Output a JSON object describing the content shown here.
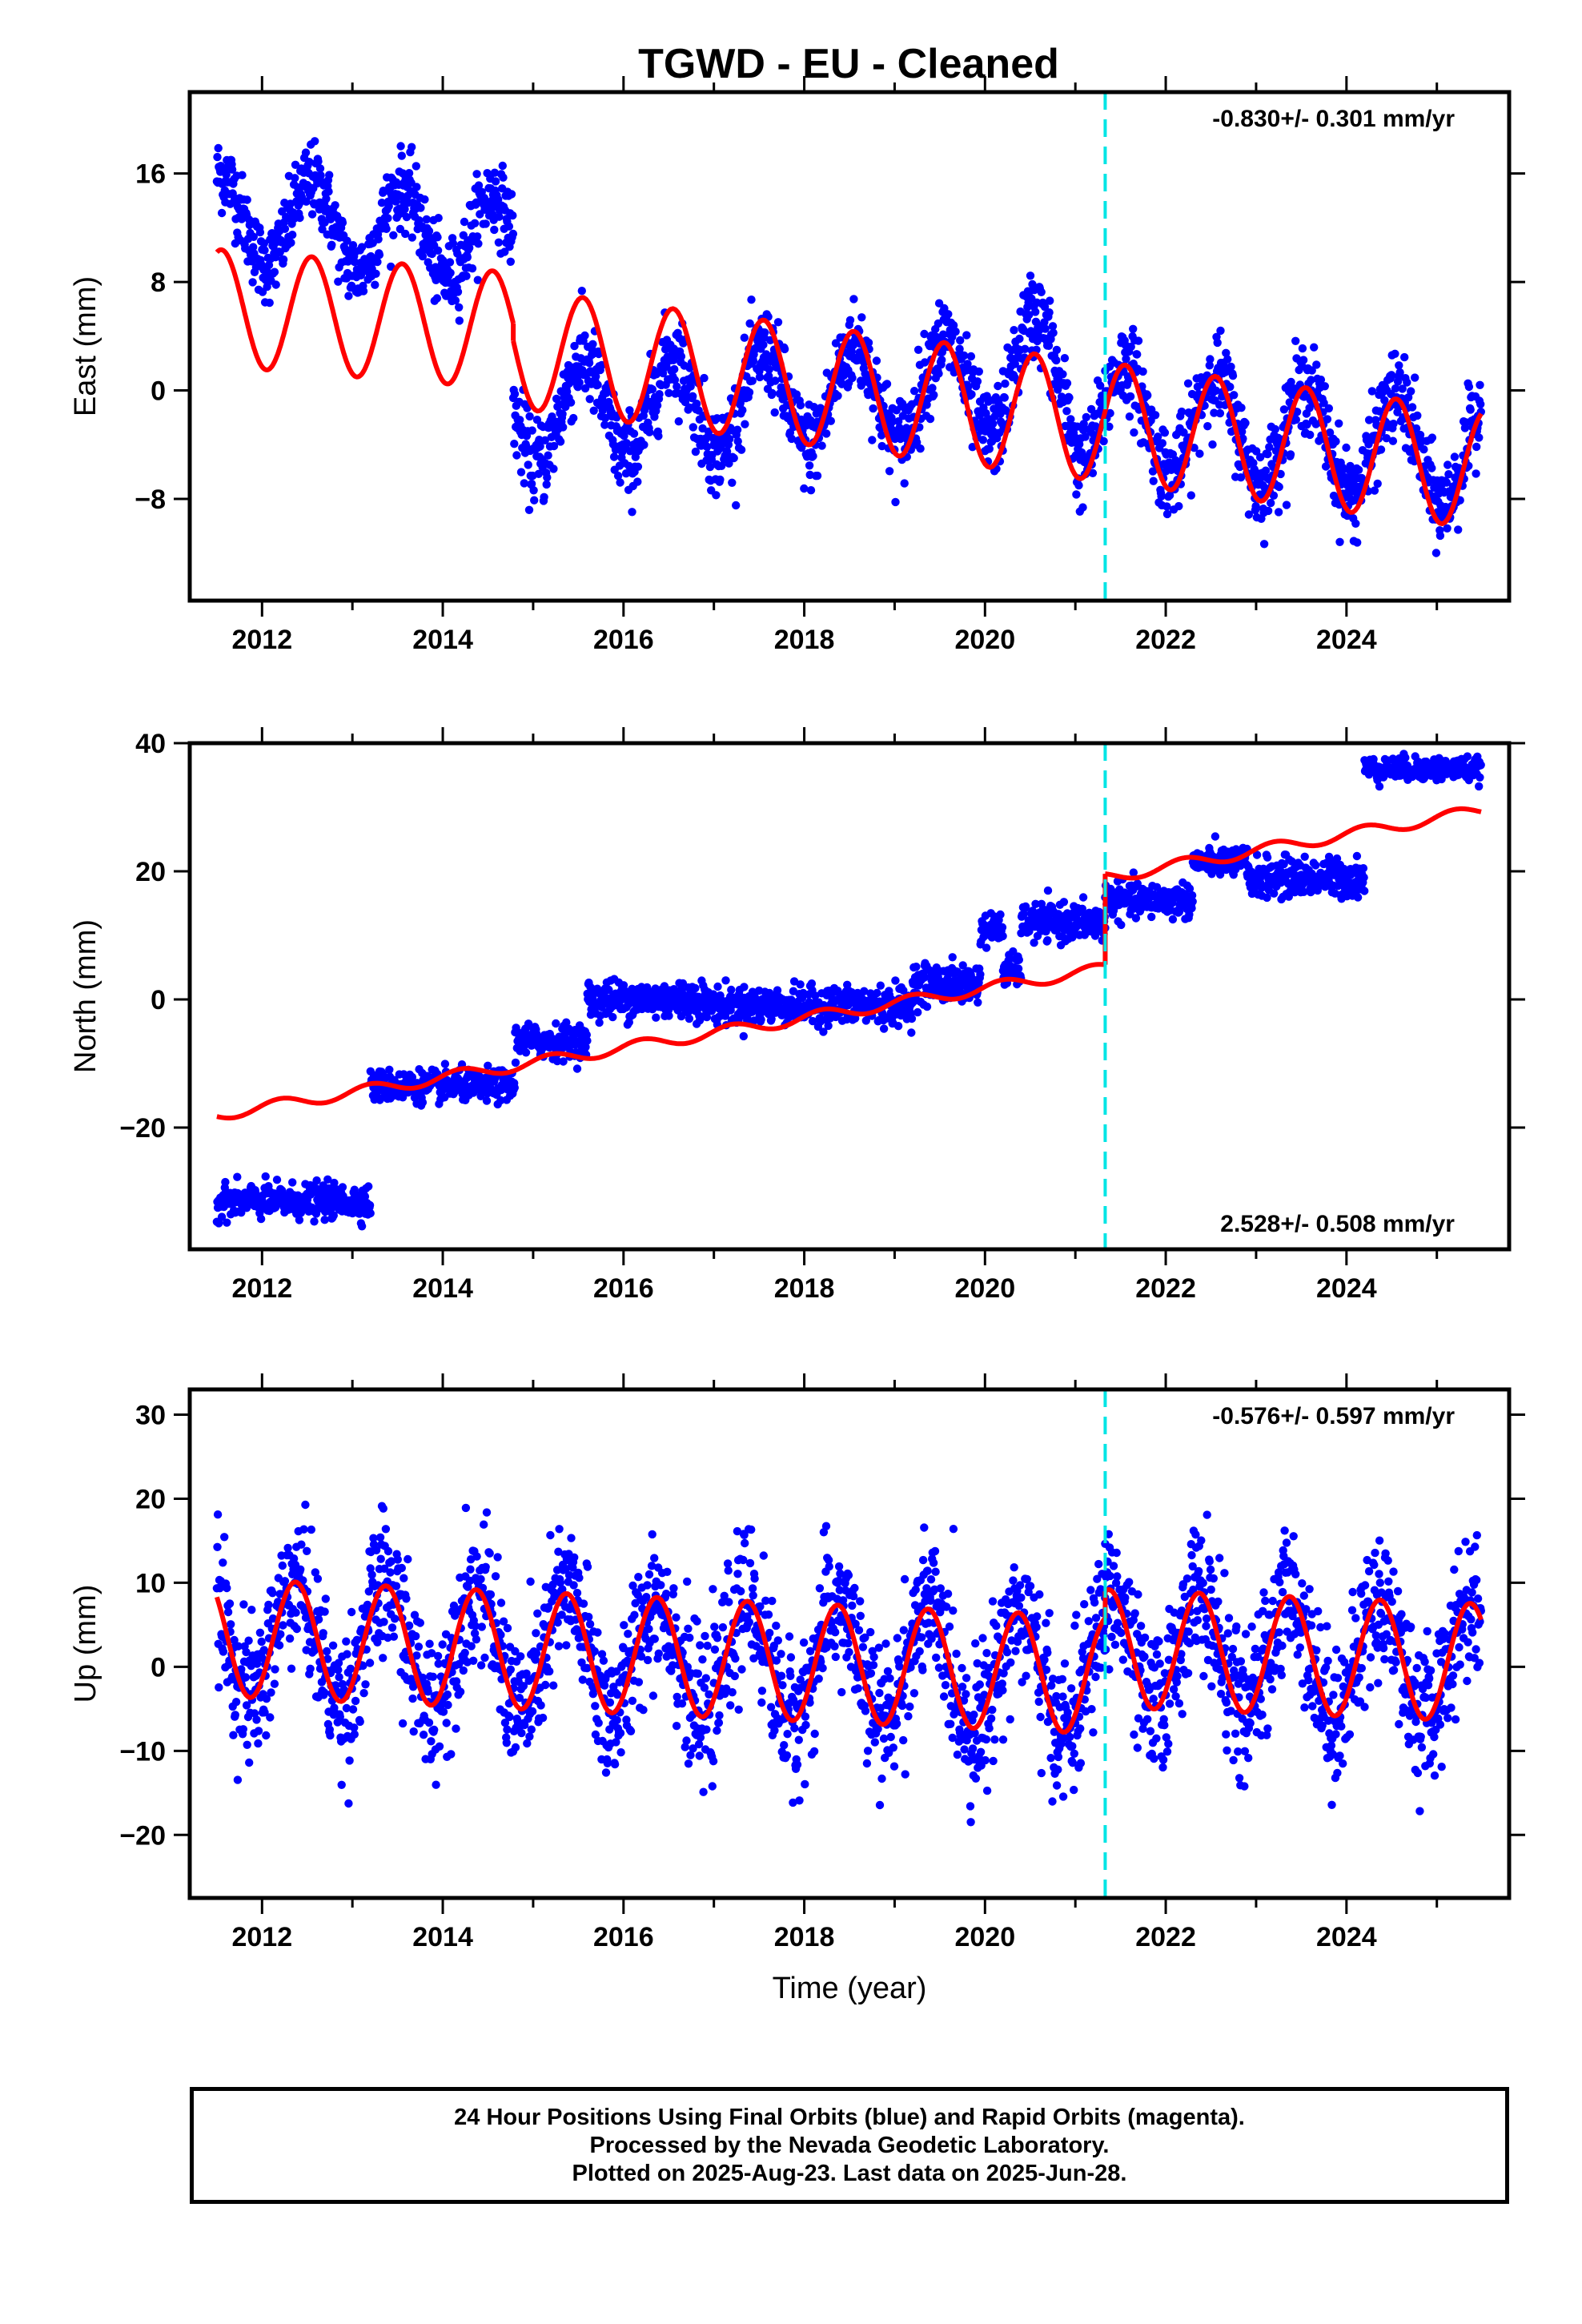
{
  "title": "TGWD  - EU - Cleaned",
  "footer": {
    "lines": [
      "24 Hour Positions Using Final Orbits (blue) and Rapid Orbits (magenta).",
      "Processed by the Nevada Geodetic Laboratory.",
      "Plotted on 2025-Aug-23. Last data on 2025-Jun-28."
    ]
  },
  "colors": {
    "data_points": "#0000ff",
    "model_fit": "#ff0000",
    "equipment_change": "#00e5e5"
  },
  "chart_data": [
    {
      "type": "scatter",
      "name": "east-panel",
      "ylabel": "East (mm)",
      "xlabel": "",
      "xlim": [
        2011.2,
        2025.8
      ],
      "ylim": [
        -15.5,
        22
      ],
      "xticks": [
        2012,
        2014,
        2016,
        2018,
        2020,
        2022,
        2024
      ],
      "xtick_labels": [
        "2012",
        "2014",
        "2016",
        "2018",
        "2020",
        "2022",
        "2024"
      ],
      "yticks": [
        -8,
        0,
        8,
        16
      ],
      "ytick_labels": [
        "−8",
        "0",
        "8",
        "16"
      ],
      "rate_text": "-0.830+/- 0.301 mm/yr",
      "rate_position": "top-right",
      "equipment_change_year": 2021.33,
      "fit_segments": [
        {
          "x_start": 2011.5,
          "x_end": 2014.78,
          "trend_start": 6.1,
          "trend_end": 4.4,
          "amp": 4.3,
          "phase": 0.55
        },
        {
          "x_start": 2014.78,
          "x_end": 2025.49,
          "trend_start": 3.1,
          "trend_end": -5.8,
          "amp": 4.4,
          "phase": 0.55
        }
      ],
      "data_segments": [
        {
          "x_start": 2011.5,
          "x_end": 2014.78,
          "trend_start": 12.8,
          "trend_end": 11.0,
          "amp": 3.2,
          "phase": 0.55,
          "noise": 1.4
        },
        {
          "x_start": 2014.78,
          "x_end": 2020.2,
          "trend_start": -1.8,
          "trend_end": 0.4,
          "amp": 3.6,
          "phase": 0.55,
          "noise": 1.6
        },
        {
          "x_start": 2020.2,
          "x_end": 2021.0,
          "trend_start": 1.0,
          "trend_end": 1.2,
          "amp": 4.5,
          "phase": 0.55,
          "noise": 1.6
        },
        {
          "x_start": 2021.0,
          "x_end": 2025.49,
          "trend_start": -1.5,
          "trend_end": -5.0,
          "amp": 3.8,
          "phase": 0.55,
          "noise": 1.6
        }
      ]
    },
    {
      "type": "scatter",
      "name": "north-panel",
      "ylabel": "North (mm)",
      "xlabel": "",
      "xlim": [
        2011.2,
        2025.8
      ],
      "ylim": [
        -39,
        40
      ],
      "xticks": [
        2012,
        2014,
        2016,
        2018,
        2020,
        2022,
        2024
      ],
      "xtick_labels": [
        "2012",
        "2014",
        "2016",
        "2018",
        "2020",
        "2022",
        "2024"
      ],
      "yticks": [
        -20,
        0,
        20,
        40
      ],
      "ytick_labels": [
        "−20",
        "0",
        "20",
        "40"
      ],
      "rate_text": "2.528+/- 0.508 mm/yr",
      "rate_position": "bottom-right",
      "equipment_change_year": 2021.33,
      "fit_segments": [
        {
          "x_start": 2011.5,
          "x_end": 2021.33,
          "trend_start": -18.0,
          "trend_end": 4.8,
          "amp": 0.9,
          "phase": 0.2
        },
        {
          "x_start": 2021.33,
          "x_end": 2025.49,
          "trend_start": 19.0,
          "trend_end": 29.5,
          "amp": 0.9,
          "phase": 0.2
        }
      ],
      "data_segments": [
        {
          "x_start": 2011.5,
          "x_end": 2013.2,
          "level": -31.5,
          "noise": 1.3
        },
        {
          "x_start": 2013.2,
          "x_end": 2014.8,
          "level": -13.5,
          "noise": 1.2
        },
        {
          "x_start": 2014.8,
          "x_end": 2015.6,
          "level": -6.5,
          "noise": 1.3
        },
        {
          "x_start": 2015.6,
          "x_end": 2016.9,
          "level": 0.0,
          "noise": 1.5
        },
        {
          "x_start": 2016.9,
          "x_end": 2018.2,
          "level": -1.0,
          "noise": 1.4
        },
        {
          "x_start": 2018.2,
          "x_end": 2019.2,
          "level": -1.0,
          "noise": 1.5
        },
        {
          "x_start": 2019.2,
          "x_end": 2019.95,
          "level": 2.5,
          "noise": 1.5
        },
        {
          "x_start": 2019.95,
          "x_end": 2020.2,
          "level": 11.0,
          "noise": 1.2
        },
        {
          "x_start": 2020.2,
          "x_end": 2020.4,
          "level": 4.5,
          "noise": 1.2
        },
        {
          "x_start": 2020.4,
          "x_end": 2021.33,
          "level": 12.0,
          "noise": 1.4
        },
        {
          "x_start": 2021.33,
          "x_end": 2022.3,
          "level": 15.5,
          "noise": 1.3
        },
        {
          "x_start": 2022.3,
          "x_end": 2022.9,
          "level": 21.5,
          "noise": 1.1
        },
        {
          "x_start": 2022.9,
          "x_end": 2024.2,
          "level": 19.0,
          "noise": 1.5
        },
        {
          "x_start": 2024.2,
          "x_end": 2025.49,
          "level": 36.0,
          "noise": 0.9
        }
      ]
    },
    {
      "type": "scatter",
      "name": "up-panel",
      "ylabel": "Up (mm)",
      "xlabel": "Time (year)",
      "xlim": [
        2011.2,
        2025.8
      ],
      "ylim": [
        -27.5,
        33
      ],
      "xticks": [
        2012,
        2014,
        2016,
        2018,
        2020,
        2022,
        2024
      ],
      "xtick_labels": [
        "2012",
        "2014",
        "2016",
        "2018",
        "2020",
        "2022",
        "2024"
      ],
      "yticks": [
        -20,
        -10,
        0,
        10,
        20,
        30
      ],
      "ytick_labels": [
        "−20",
        "−10",
        "0",
        "10",
        "20",
        "30"
      ],
      "rate_text": "-0.576+/- 0.597 mm/yr",
      "rate_position": "top-right",
      "equipment_change_year": 2021.33,
      "fit_segments": [
        {
          "x_start": 2011.5,
          "x_end": 2021.33,
          "trend_start": 3.5,
          "trend_end": -1.0,
          "amp": 7.0,
          "phase": 0.37
        },
        {
          "x_start": 2021.33,
          "x_end": 2025.49,
          "trend_start": 2.2,
          "trend_end": 0.5,
          "amp": 7.0,
          "phase": 0.37
        }
      ],
      "data_segments": [
        {
          "x_start": 2011.5,
          "x_end": 2021.33,
          "trend_start": 3.5,
          "trend_end": -1.0,
          "amp": 7.0,
          "phase": 0.37,
          "noise": 4.2
        },
        {
          "x_start": 2021.33,
          "x_end": 2025.49,
          "trend_start": 2.2,
          "trend_end": 0.5,
          "amp": 7.0,
          "phase": 0.37,
          "noise": 4.2
        }
      ]
    }
  ]
}
